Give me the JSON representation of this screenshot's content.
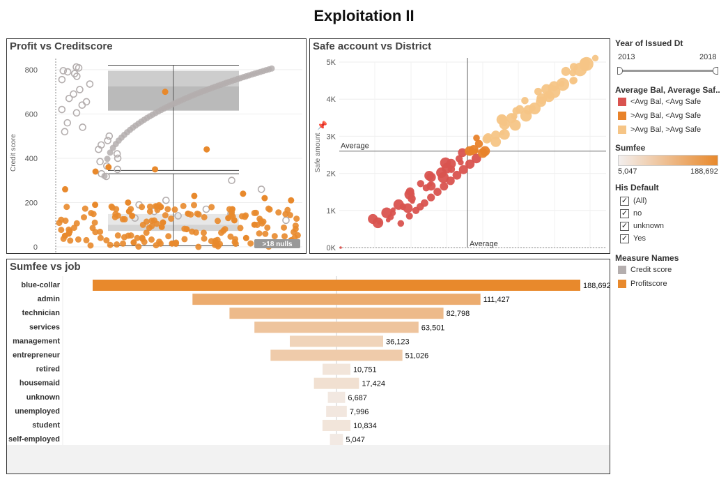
{
  "dashboard_title": "Exploitation II",
  "sidebar": {
    "year": {
      "title": "Year of Issued Dt",
      "min_label": "2013",
      "max_label": "2018"
    },
    "color_legend": {
      "title": "Average Bal, Average Saf..",
      "items": [
        {
          "label": "<Avg Bal, <Avg Safe",
          "color": "#d9534f"
        },
        {
          "label": ">Avg Bal, <Avg Safe",
          "color": "#e8822a"
        },
        {
          "label": ">Avg Bal, >Avg Safe",
          "color": "#f6c586"
        }
      ]
    },
    "sumfee_legend": {
      "title": "Sumfee",
      "min_label": "5,047",
      "max_label": "188,692"
    },
    "default_filter": {
      "title": "His Default",
      "items": [
        {
          "label": "(All)",
          "checked": true
        },
        {
          "label": "no",
          "checked": true
        },
        {
          "label": "unknown",
          "checked": true
        },
        {
          "label": "Yes",
          "checked": true
        }
      ]
    },
    "measure_legend": {
      "title": "Measure Names",
      "items": [
        {
          "label": "Credit score",
          "color": "#b4aeae"
        },
        {
          "label": "Profitscore",
          "color": "#e8892c"
        }
      ]
    }
  },
  "chart_data": [
    {
      "type": "scatter",
      "title": "Profit vs Creditscore",
      "ylabel": "Credit score",
      "yticks": [
        "0",
        "200",
        "400",
        "600",
        "800"
      ],
      "ylim": [
        0,
        850
      ],
      "null_badge": ">18 nulls",
      "series": [
        {
          "name": "Credit score",
          "color": "#b4aeae",
          "values": [
            812,
            808,
            795,
            790,
            782,
            770,
            755,
            735,
            710,
            690,
            670,
            655,
            640,
            620,
            605,
            560,
            540,
            520,
            500,
            480,
            460,
            440,
            420,
            400,
            385,
            365,
            350,
            330,
            318,
            300,
            260,
            210,
            190,
            180,
            170,
            160,
            150,
            140,
            130,
            120
          ]
        },
        {
          "name": "Profitscore",
          "color": "#e8892c",
          "values": [
            700,
            440,
            360,
            350,
            340,
            260,
            240,
            230,
            220,
            210,
            200,
            190,
            180,
            170,
            160,
            150,
            140,
            130,
            120,
            110,
            100,
            90,
            80,
            70,
            60,
            50,
            40,
            30,
            20,
            15,
            10
          ]
        }
      ],
      "boxplots": [
        {
          "series": "Credit score",
          "lower_whisker": 345,
          "q1": 615,
          "median": 725,
          "q3": 795,
          "upper_whisker": 820
        },
        {
          "series": "Profitscore",
          "lower_whisker": 5,
          "q1": 72,
          "median": 100,
          "q3": 148,
          "upper_whisker": 330
        }
      ]
    },
    {
      "type": "scatter",
      "title": "Safe account vs District",
      "ylabel": "Safe amount",
      "yticks": [
        "0K",
        "1K",
        "2K",
        "3K",
        "4K",
        "5K"
      ],
      "ylim": [
        0,
        5000
      ],
      "reference_lines": [
        {
          "axis": "y",
          "label": "Average",
          "value": 2600
        },
        {
          "axis": "x",
          "label": "Average"
        }
      ],
      "points": [
        {
          "y": 0,
          "group": "<Avg Bal, <Avg Safe"
        },
        {
          "y": 650,
          "group": "<Avg Bal, <Avg Safe"
        },
        {
          "y": 850,
          "group": "<Avg Bal, <Avg Safe"
        },
        {
          "y": 1000,
          "group": "<Avg Bal, <Avg Safe"
        },
        {
          "y": 1100,
          "group": "<Avg Bal, <Avg Safe"
        },
        {
          "y": 1200,
          "group": "<Avg Bal, <Avg Safe"
        },
        {
          "y": 1350,
          "group": "<Avg Bal, <Avg Safe"
        },
        {
          "y": 1500,
          "group": "<Avg Bal, <Avg Safe"
        },
        {
          "y": 1650,
          "group": "<Avg Bal, <Avg Safe"
        },
        {
          "y": 1800,
          "group": "<Avg Bal, <Avg Safe"
        },
        {
          "y": 1950,
          "group": "<Avg Bal, <Avg Safe"
        },
        {
          "y": 2100,
          "group": "<Avg Bal, <Avg Safe"
        },
        {
          "y": 2250,
          "group": "<Avg Bal, <Avg Safe"
        },
        {
          "y": 2400,
          "group": "<Avg Bal, <Avg Safe"
        },
        {
          "y": 2550,
          "group": ">Avg Bal, <Avg Safe"
        },
        {
          "y": 2600,
          "group": ">Avg Bal, <Avg Safe"
        },
        {
          "y": 2850,
          "group": ">Avg Bal, >Avg Safe"
        },
        {
          "y": 3050,
          "group": ">Avg Bal, >Avg Safe"
        },
        {
          "y": 3300,
          "group": ">Avg Bal, >Avg Safe"
        },
        {
          "y": 3550,
          "group": ">Avg Bal, >Avg Safe"
        },
        {
          "y": 3750,
          "group": ">Avg Bal, >Avg Safe"
        },
        {
          "y": 4200,
          "group": ">Avg Bal, >Avg Safe"
        },
        {
          "y": 4400,
          "group": ">Avg Bal, >Avg Safe"
        },
        {
          "y": 4800,
          "group": ">Avg Bal, >Avg Safe"
        },
        {
          "y": 4950,
          "group": ">Avg Bal, >Avg Safe"
        }
      ]
    },
    {
      "type": "bar",
      "title": "Sumfee vs job",
      "categories": [
        "blue-collar",
        "admin",
        "technician",
        "services",
        "management",
        "entrepreneur",
        "retired",
        "housemaid",
        "unknown",
        "unemployed",
        "student",
        "self-employed"
      ],
      "values": [
        188692,
        111427,
        82798,
        63501,
        36123,
        51026,
        10751,
        17424,
        6687,
        7996,
        10834,
        5047
      ],
      "value_labels": [
        "188,692",
        "111,427",
        "82,798",
        "63,501",
        "36,123",
        "51,026",
        "10,751",
        "17,424",
        "6,687",
        "7,996",
        "10,834",
        "5,047"
      ],
      "color_min": "#f3efee",
      "color_max": "#e8892c"
    }
  ]
}
